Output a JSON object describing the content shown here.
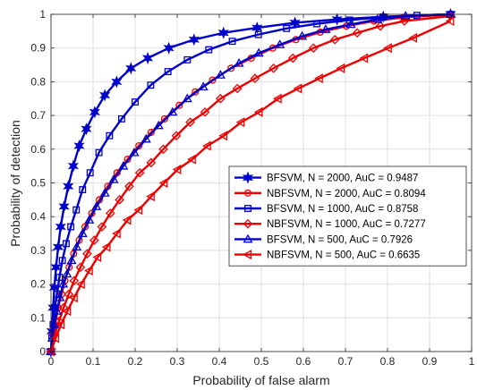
{
  "chart_data": {
    "type": "line",
    "title": "",
    "xlabel": "Probability of false alarm",
    "ylabel": "Probability of detection",
    "xlim": [
      0,
      1
    ],
    "ylim": [
      0,
      1
    ],
    "xticks": [
      "0",
      "0.1",
      "0.2",
      "0.3",
      "0.4",
      "0.5",
      "0.6",
      "0.7",
      "0.8",
      "0.9",
      "1"
    ],
    "yticks": [
      "0",
      "0.1",
      "0.2",
      "0.3",
      "0.4",
      "0.5",
      "0.6",
      "0.7",
      "0.8",
      "0.9",
      "1"
    ],
    "grid": true,
    "legend_position": "center-right",
    "series": [
      {
        "name": "BFSVM, N = 2000, AuC = 0.9487",
        "color": "#0000cc",
        "marker": "hexagram",
        "x": [
          0,
          0.002,
          0.005,
          0.008,
          0.012,
          0.017,
          0.023,
          0.031,
          0.041,
          0.053,
          0.067,
          0.084,
          0.104,
          0.128,
          0.156,
          0.19,
          0.23,
          0.28,
          0.34,
          0.41,
          0.49,
          0.58,
          0.68,
          0.79,
          0.95
        ],
        "y": [
          0.0,
          0.06,
          0.13,
          0.19,
          0.25,
          0.31,
          0.37,
          0.43,
          0.49,
          0.55,
          0.61,
          0.66,
          0.71,
          0.76,
          0.8,
          0.84,
          0.87,
          0.9,
          0.925,
          0.945,
          0.96,
          0.975,
          0.985,
          0.993,
          1.0
        ]
      },
      {
        "name": "NBFSVM, N = 2000, AuC = 0.8094",
        "color": "#ee0000",
        "marker": "circle",
        "x": [
          0,
          0.005,
          0.011,
          0.017,
          0.025,
          0.033,
          0.043,
          0.054,
          0.067,
          0.081,
          0.097,
          0.115,
          0.135,
          0.157,
          0.182,
          0.209,
          0.238,
          0.27,
          0.305,
          0.343,
          0.384,
          0.428,
          0.476,
          0.527,
          0.582,
          0.64,
          0.702,
          0.768,
          0.838,
          0.95
        ],
        "y": [
          0.0,
          0.05,
          0.09,
          0.13,
          0.17,
          0.21,
          0.25,
          0.29,
          0.33,
          0.37,
          0.41,
          0.45,
          0.49,
          0.53,
          0.57,
          0.61,
          0.65,
          0.69,
          0.73,
          0.77,
          0.805,
          0.84,
          0.87,
          0.9,
          0.925,
          0.947,
          0.965,
          0.98,
          0.991,
          1.0
        ]
      },
      {
        "name": "BFSVM, N = 1000, AuC = 0.8758",
        "color": "#0000cc",
        "marker": "square",
        "x": [
          0,
          0.002,
          0.005,
          0.009,
          0.014,
          0.02,
          0.027,
          0.036,
          0.047,
          0.06,
          0.075,
          0.093,
          0.114,
          0.139,
          0.168,
          0.2,
          0.237,
          0.278,
          0.324,
          0.375,
          0.431,
          0.493,
          0.56,
          0.632,
          0.71,
          0.79,
          0.87,
          0.95
        ],
        "y": [
          0.0,
          0.04,
          0.08,
          0.13,
          0.17,
          0.22,
          0.27,
          0.32,
          0.37,
          0.42,
          0.48,
          0.53,
          0.59,
          0.64,
          0.69,
          0.74,
          0.79,
          0.83,
          0.865,
          0.895,
          0.92,
          0.94,
          0.958,
          0.972,
          0.983,
          0.992,
          0.997,
          1.0
        ]
      },
      {
        "name": "NBFSVM, N = 1000, AuC = 0.7277",
        "color": "#ee0000",
        "marker": "diamond",
        "x": [
          0,
          0.009,
          0.019,
          0.03,
          0.042,
          0.055,
          0.07,
          0.086,
          0.103,
          0.121,
          0.141,
          0.163,
          0.186,
          0.211,
          0.238,
          0.267,
          0.298,
          0.331,
          0.366,
          0.403,
          0.443,
          0.485,
          0.529,
          0.575,
          0.624,
          0.675,
          0.728,
          0.783,
          0.84,
          0.95
        ],
        "y": [
          0.0,
          0.05,
          0.09,
          0.13,
          0.17,
          0.21,
          0.25,
          0.29,
          0.33,
          0.37,
          0.41,
          0.45,
          0.49,
          0.53,
          0.56,
          0.6,
          0.64,
          0.68,
          0.71,
          0.75,
          0.78,
          0.81,
          0.84,
          0.87,
          0.9,
          0.925,
          0.945,
          0.965,
          0.98,
          0.995
        ]
      },
      {
        "name": "BFSVM, N = 500, AuC = 0.7926",
        "color": "#0000cc",
        "marker": "triangle-up",
        "x": [
          0,
          0.003,
          0.008,
          0.014,
          0.021,
          0.029,
          0.038,
          0.049,
          0.061,
          0.075,
          0.091,
          0.108,
          0.128,
          0.149,
          0.172,
          0.198,
          0.226,
          0.256,
          0.289,
          0.324,
          0.362,
          0.403,
          0.447,
          0.494,
          0.544,
          0.597,
          0.653,
          0.713,
          0.776,
          0.843,
          0.95
        ],
        "y": [
          0.0,
          0.04,
          0.08,
          0.12,
          0.16,
          0.2,
          0.23,
          0.27,
          0.31,
          0.35,
          0.39,
          0.43,
          0.47,
          0.51,
          0.55,
          0.59,
          0.63,
          0.67,
          0.71,
          0.75,
          0.785,
          0.82,
          0.855,
          0.885,
          0.91,
          0.935,
          0.955,
          0.97,
          0.985,
          0.995,
          1.0
        ]
      },
      {
        "name": "NBFSVM, N = 500, AuC = 0.6635",
        "color": "#ee0000",
        "marker": "triangle-left",
        "x": [
          0,
          0.011,
          0.024,
          0.039,
          0.055,
          0.072,
          0.091,
          0.111,
          0.133,
          0.157,
          0.182,
          0.209,
          0.238,
          0.269,
          0.301,
          0.336,
          0.372,
          0.411,
          0.452,
          0.495,
          0.54,
          0.588,
          0.638,
          0.69,
          0.745,
          0.802,
          0.862,
          0.95
        ],
        "y": [
          0.0,
          0.04,
          0.08,
          0.12,
          0.16,
          0.2,
          0.24,
          0.28,
          0.31,
          0.35,
          0.39,
          0.42,
          0.46,
          0.5,
          0.54,
          0.57,
          0.61,
          0.64,
          0.68,
          0.71,
          0.75,
          0.78,
          0.81,
          0.84,
          0.87,
          0.9,
          0.93,
          0.98
        ]
      }
    ]
  }
}
